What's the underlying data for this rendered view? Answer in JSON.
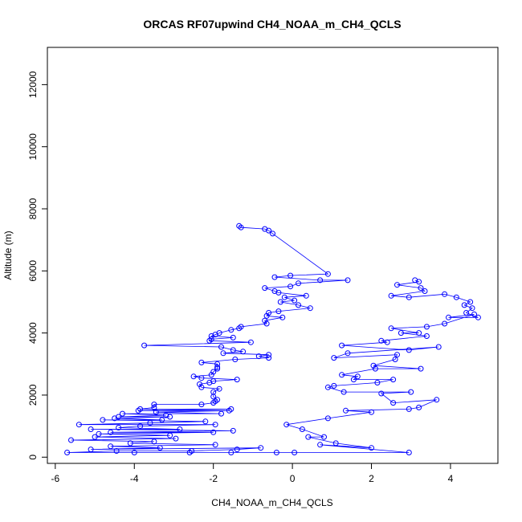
{
  "chart_data": {
    "type": "scatter",
    "title": "ORCAS RF07upwind CH4_NOAA_m_CH4_QCLS",
    "xlabel": "CH4_NOAA_m_CH4_QCLS",
    "ylabel": "Altitude (m)",
    "xlim": [
      -6.2,
      5.2
    ],
    "ylim": [
      -200,
      13200
    ],
    "xticks": [
      -6,
      -4,
      -2,
      0,
      2,
      4
    ],
    "yticks": [
      0,
      2000,
      4000,
      6000,
      8000,
      10000,
      12000
    ],
    "grid": false,
    "color": "#0000ff",
    "marker": "open-circle",
    "connect_points": true,
    "series": [
      {
        "name": "",
        "points": [
          [
            -1.35,
            7450
          ],
          [
            -1.3,
            7400
          ],
          [
            -0.7,
            7350
          ],
          [
            -0.6,
            7300
          ],
          [
            -0.5,
            7200
          ],
          [
            0.9,
            5900
          ],
          [
            -0.05,
            5850
          ],
          [
            -0.45,
            5800
          ],
          [
            0.7,
            5700
          ],
          [
            1.4,
            5700
          ],
          [
            0.15,
            5600
          ],
          [
            -0.05,
            5500
          ],
          [
            -0.7,
            5450
          ],
          [
            -0.45,
            5350
          ],
          [
            -0.35,
            5300
          ],
          [
            0.35,
            5200
          ],
          [
            -0.2,
            5150
          ],
          [
            0.05,
            5050
          ],
          [
            -0.3,
            5000
          ],
          [
            0.15,
            4900
          ],
          [
            0.45,
            4800
          ],
          [
            -0.35,
            4700
          ],
          [
            -0.6,
            4650
          ],
          [
            -0.65,
            4550
          ],
          [
            -0.25,
            4500
          ],
          [
            -0.7,
            4400
          ],
          [
            -0.65,
            4300
          ],
          [
            -1.3,
            4200
          ],
          [
            -1.35,
            4150
          ],
          [
            -1.55,
            4100
          ],
          [
            -1.85,
            4000
          ],
          [
            -1.95,
            3950
          ],
          [
            -2.05,
            3900
          ],
          [
            -1.5,
            3850
          ],
          [
            -2.05,
            3800
          ],
          [
            -2.1,
            3750
          ],
          [
            -1.05,
            3700
          ],
          [
            -3.75,
            3600
          ],
          [
            -1.8,
            3550
          ],
          [
            -1.5,
            3450
          ],
          [
            -1.25,
            3400
          ],
          [
            -1.75,
            3350
          ],
          [
            -0.6,
            3300
          ],
          [
            -0.85,
            3250
          ],
          [
            -0.6,
            3200
          ],
          [
            -1.45,
            3150
          ],
          [
            -2.3,
            3050
          ],
          [
            -1.9,
            3000
          ],
          [
            -1.9,
            2900
          ],
          [
            -1.9,
            2850
          ],
          [
            -2.0,
            2750
          ],
          [
            -2.05,
            2650
          ],
          [
            -2.5,
            2600
          ],
          [
            -2.3,
            2550
          ],
          [
            -1.4,
            2500
          ],
          [
            -2.0,
            2450
          ],
          [
            -2.1,
            2400
          ],
          [
            -2.35,
            2350
          ],
          [
            -2.3,
            2250
          ],
          [
            -1.85,
            2200
          ],
          [
            -2.0,
            2100
          ],
          [
            -2.0,
            1950
          ],
          [
            -1.9,
            1850
          ],
          [
            -1.95,
            1800
          ],
          [
            -2.0,
            1750
          ],
          [
            -2.3,
            1700
          ],
          [
            -3.5,
            1700
          ],
          [
            -3.5,
            1600
          ],
          [
            -3.85,
            1550
          ],
          [
            -1.55,
            1550
          ],
          [
            -3.9,
            1500
          ],
          [
            -1.6,
            1500
          ],
          [
            -3.45,
            1450
          ],
          [
            -1.8,
            1400
          ],
          [
            -4.3,
            1400
          ],
          [
            -3.2,
            1350
          ],
          [
            -4.4,
            1300
          ],
          [
            -3.1,
            1300
          ],
          [
            -4.5,
            1250
          ],
          [
            -3.3,
            1200
          ],
          [
            -4.8,
            1200
          ],
          [
            -2.2,
            1150
          ],
          [
            -3.6,
            1100
          ],
          [
            -5.4,
            1050
          ],
          [
            -1.95,
            1050
          ],
          [
            -3.85,
            1000
          ],
          [
            -4.4,
            950
          ],
          [
            -2.85,
            900
          ],
          [
            -5.1,
            900
          ],
          [
            -1.5,
            850
          ],
          [
            -4.6,
            800
          ],
          [
            -2.0,
            800
          ],
          [
            -4.9,
            750
          ],
          [
            -3.1,
            700
          ],
          [
            -5.0,
            650
          ],
          [
            -2.95,
            600
          ],
          [
            -5.6,
            550
          ],
          [
            -3.5,
            500
          ],
          [
            -4.1,
            450
          ],
          [
            -1.95,
            400
          ],
          [
            -4.6,
            350
          ],
          [
            -3.35,
            300
          ],
          [
            -5.1,
            250
          ],
          [
            -0.8,
            300
          ],
          [
            -1.4,
            250
          ],
          [
            -2.55,
            200
          ],
          [
            -4.45,
            200
          ],
          [
            -5.7,
            150
          ],
          [
            -1.55,
            150
          ],
          [
            -2.6,
            150
          ],
          [
            -4.0,
            150
          ],
          [
            -0.4,
            150
          ],
          [
            0.05,
            150
          ],
          [
            2.95,
            150
          ],
          [
            0.7,
            400
          ],
          [
            2.0,
            300
          ],
          [
            1.1,
            450
          ],
          [
            0.4,
            650
          ],
          [
            0.8,
            650
          ],
          [
            0.25,
            900
          ],
          [
            -0.15,
            1050
          ],
          [
            0.9,
            1250
          ],
          [
            2.0,
            1450
          ],
          [
            1.35,
            1500
          ],
          [
            2.95,
            1550
          ],
          [
            3.2,
            1600
          ],
          [
            3.65,
            1850
          ],
          [
            2.55,
            1750
          ],
          [
            2.25,
            2050
          ],
          [
            3.0,
            2100
          ],
          [
            1.3,
            2100
          ],
          [
            0.9,
            2250
          ],
          [
            1.05,
            2300
          ],
          [
            2.15,
            2400
          ],
          [
            2.55,
            2500
          ],
          [
            1.55,
            2500
          ],
          [
            1.65,
            2600
          ],
          [
            1.25,
            2650
          ],
          [
            2.1,
            2850
          ],
          [
            3.25,
            2850
          ],
          [
            2.05,
            2950
          ],
          [
            2.6,
            3150
          ],
          [
            2.65,
            3300
          ],
          [
            1.05,
            3200
          ],
          [
            1.4,
            3350
          ],
          [
            3.7,
            3550
          ],
          [
            2.95,
            3450
          ],
          [
            1.25,
            3600
          ],
          [
            2.4,
            3700
          ],
          [
            2.25,
            3750
          ],
          [
            3.4,
            3900
          ],
          [
            2.75,
            4000
          ],
          [
            3.2,
            4000
          ],
          [
            2.5,
            4150
          ],
          [
            3.4,
            4200
          ],
          [
            3.85,
            4300
          ],
          [
            4.6,
            4600
          ],
          [
            3.95,
            4500
          ],
          [
            4.7,
            4500
          ],
          [
            4.4,
            4650
          ],
          [
            4.55,
            4800
          ],
          [
            4.35,
            4900
          ],
          [
            4.5,
            5000
          ],
          [
            4.15,
            5150
          ],
          [
            3.85,
            5250
          ],
          [
            2.95,
            5150
          ],
          [
            2.5,
            5200
          ],
          [
            3.35,
            5350
          ],
          [
            3.25,
            5450
          ],
          [
            2.65,
            5550
          ],
          [
            3.2,
            5650
          ],
          [
            3.1,
            5700
          ]
        ]
      }
    ]
  }
}
